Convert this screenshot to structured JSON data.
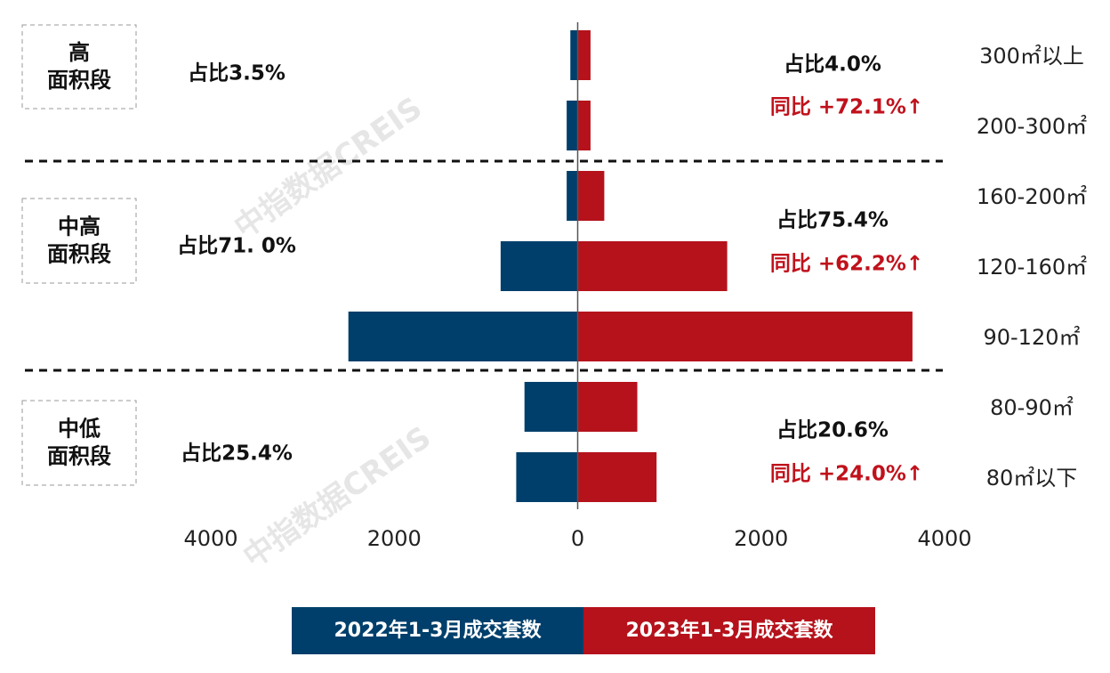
{
  "chart_data": {
    "type": "butterfly",
    "categories": [
      "300㎡以上",
      "200-300㎡",
      "160-200㎡",
      "120-160㎡",
      "90-120㎡",
      "80-90㎡",
      "80㎡以下"
    ],
    "series": [
      {
        "name": "2022年1-3月成交套数",
        "color": "#003f6b",
        "side": "left",
        "values": [
          80,
          120,
          120,
          840,
          2500,
          580,
          670
        ]
      },
      {
        "name": "2023年1-3月成交套数",
        "color": "#b5121b",
        "side": "right",
        "values": [
          140,
          140,
          290,
          1630,
          3650,
          650,
          860
        ]
      }
    ],
    "xlim": [
      -4000,
      4000
    ],
    "xticks": [
      {
        "value": -4000,
        "label": "4000"
      },
      {
        "value": -2000,
        "label": "2000"
      },
      0,
      2000,
      4000
    ],
    "groups": [
      {
        "lines": [
          "高",
          "面积段"
        ],
        "share_2022": "占比3.5%",
        "share_2023": "占比4.0%",
        "yoy": "同比 +72.1%↑"
      },
      {
        "lines": [
          "中高",
          "面积段"
        ],
        "share_2022": "占比71. 0%",
        "share_2023": "占比75.4%",
        "yoy": "同比 +62.2%↑"
      },
      {
        "lines": [
          "中低",
          "面积段"
        ],
        "share_2022": "占比25.4%",
        "share_2023": "占比20.6%",
        "yoy": "同比 +24.0%↑"
      }
    ],
    "watermark": "中指数据CREIS"
  }
}
